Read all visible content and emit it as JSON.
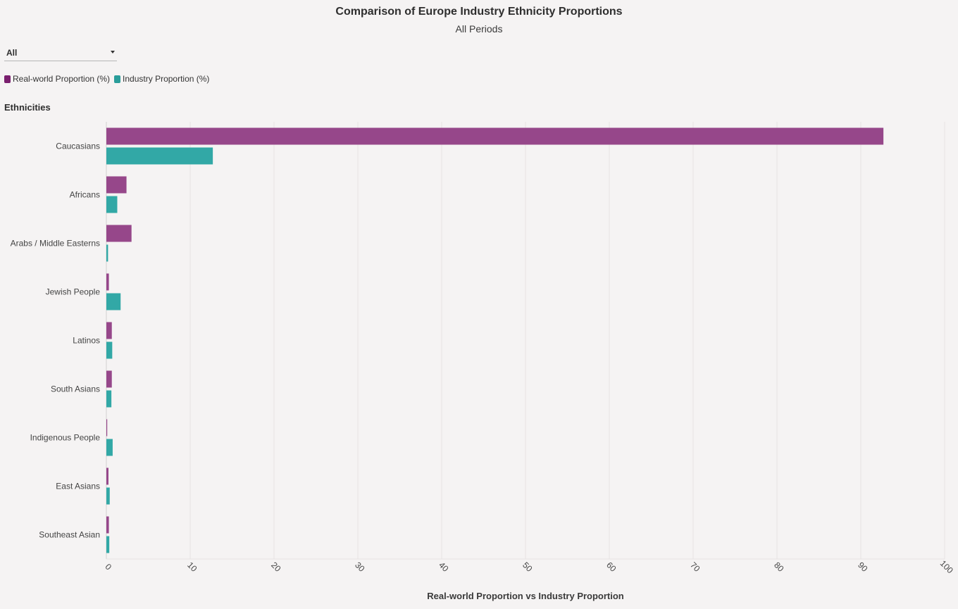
{
  "title": "Comparison of Europe Industry Ethnicity Proportions",
  "subtitle": "All Periods",
  "filter": {
    "selected": "All"
  },
  "legend": {
    "items": [
      {
        "label": "Real-world Proportion (%)",
        "color": "#7a1f6e"
      },
      {
        "label": "Industry Proportion (%)",
        "color": "#2a9d9a"
      }
    ]
  },
  "chart_data": {
    "type": "bar",
    "orientation": "horizontal",
    "ylabel": "Ethnicities",
    "xlabel": "Real-world Proportion vs Industry Proportion",
    "categories": [
      "Caucasians",
      "Africans",
      "Arabs / Middle Easterns",
      "Jewish People",
      "Latinos",
      "South Asians",
      "Indigenous People",
      "East Asians",
      "Southeast Asian"
    ],
    "series": [
      {
        "name": "Real-world Proportion (%)",
        "color": "#96478a",
        "values": [
          92.7,
          2.4,
          3.0,
          0.3,
          0.65,
          0.65,
          0.1,
          0.25,
          0.3
        ]
      },
      {
        "name": "Industry Proportion (%)",
        "color": "#32a8a6",
        "values": [
          12.7,
          1.3,
          0.2,
          1.7,
          0.7,
          0.6,
          0.75,
          0.4,
          0.35
        ]
      }
    ],
    "xlim": [
      0,
      100
    ],
    "xticks": [
      "0",
      "10",
      "20",
      "30",
      "40",
      "50",
      "60",
      "70",
      "80",
      "90",
      "100"
    ],
    "grid": true,
    "legend_position": "top-left"
  }
}
